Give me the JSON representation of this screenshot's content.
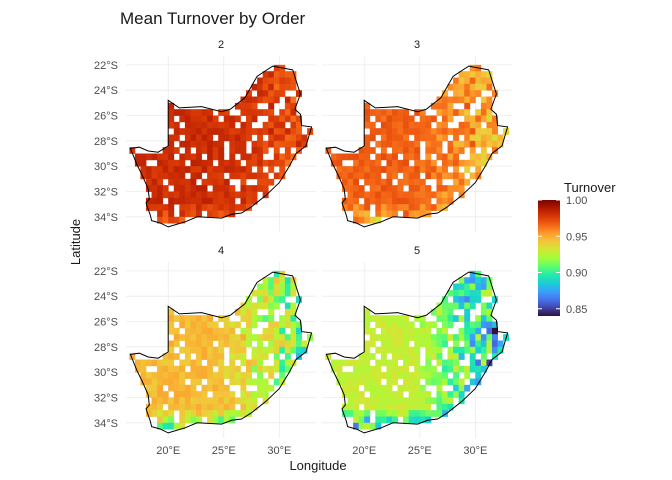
{
  "title": "Mean Turnover by Order",
  "xlabel": "Longitude",
  "ylabel": "Latitude",
  "facets": [
    "2",
    "3",
    "4",
    "5"
  ],
  "x_ticks": [
    "20°E",
    "25°E",
    "30°E"
  ],
  "x_tick_values": [
    20,
    25,
    30
  ],
  "y_ticks": [
    "22°S",
    "24°S",
    "26°S",
    "28°S",
    "30°S",
    "32°S",
    "34°S"
  ],
  "y_tick_values": [
    22,
    24,
    26,
    28,
    30,
    32,
    34
  ],
  "legend": {
    "title": "Turnover",
    "labels": [
      "1.00",
      "0.95",
      "0.90",
      "0.85"
    ],
    "values": [
      1.0,
      0.95,
      0.9,
      0.85
    ],
    "range": [
      0.84,
      1.0
    ]
  },
  "colors": {
    "scale": [
      "#30123b",
      "#4145ab",
      "#4675ed",
      "#39a2fc",
      "#1bcfd4",
      "#24eca6",
      "#61fc6c",
      "#a4fc3b",
      "#d1e834",
      "#f3c63a",
      "#fe9b2d",
      "#f36315",
      "#d93806",
      "#b11901",
      "#7a0402"
    ],
    "grid": "#ebebeb",
    "outline": "#000000",
    "text": "#4d4d4d"
  }
}
